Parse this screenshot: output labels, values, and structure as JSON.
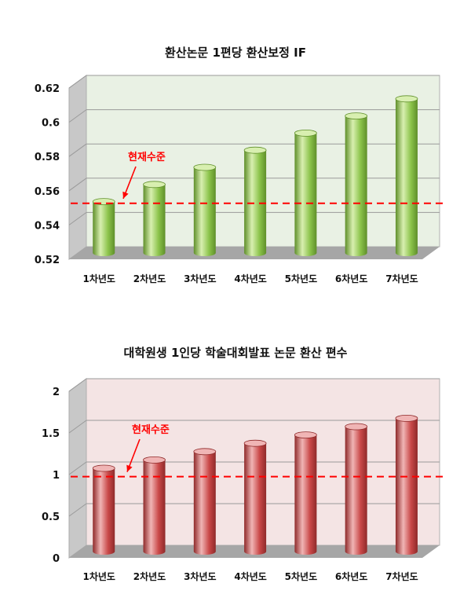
{
  "chart_data": [
    {
      "type": "bar",
      "title": "환산논문 1편당 환산보정 IF",
      "categories": [
        "1차년도",
        "2차년도",
        "3차년도",
        "4차년도",
        "5차년도",
        "6차년도",
        "7차년도"
      ],
      "values": [
        0.55,
        0.56,
        0.57,
        0.58,
        0.59,
        0.6,
        0.61
      ],
      "ylim": [
        0.52,
        0.62
      ],
      "yticks": [
        "0.52",
        "0.54",
        "0.56",
        "0.58",
        "0.6",
        "0.62"
      ],
      "reference_line": {
        "label": "현재수준",
        "value": 0.549
      },
      "colors": {
        "bar": "#8bc34a",
        "bar_dark": "#5f8f2a",
        "bar_light": "#d8efb0",
        "wall": "#e9f1e4",
        "floor": "#a6a6a6",
        "ref": "#ff0000"
      },
      "grid": true
    },
    {
      "type": "bar",
      "title": "대학원생 1인당 학술대회발표 논문 환산 편수",
      "categories": [
        "1차년도",
        "2차년도",
        "3차년도",
        "4차년도",
        "5차년도",
        "6차년도",
        "7차년도"
      ],
      "values": [
        1.0,
        1.1,
        1.2,
        1.3,
        1.4,
        1.5,
        1.6
      ],
      "ylim": [
        0,
        2
      ],
      "yticks": [
        "0",
        "0.5",
        "1",
        "1.5",
        "2"
      ],
      "reference_line": {
        "label": "현재수준",
        "value": 0.9
      },
      "colors": {
        "bar": "#c94848",
        "bar_dark": "#8f2a2a",
        "bar_light": "#f0b5b5",
        "wall": "#f4e4e4",
        "floor": "#a6a6a6",
        "ref": "#ff0000"
      },
      "grid": true
    }
  ]
}
